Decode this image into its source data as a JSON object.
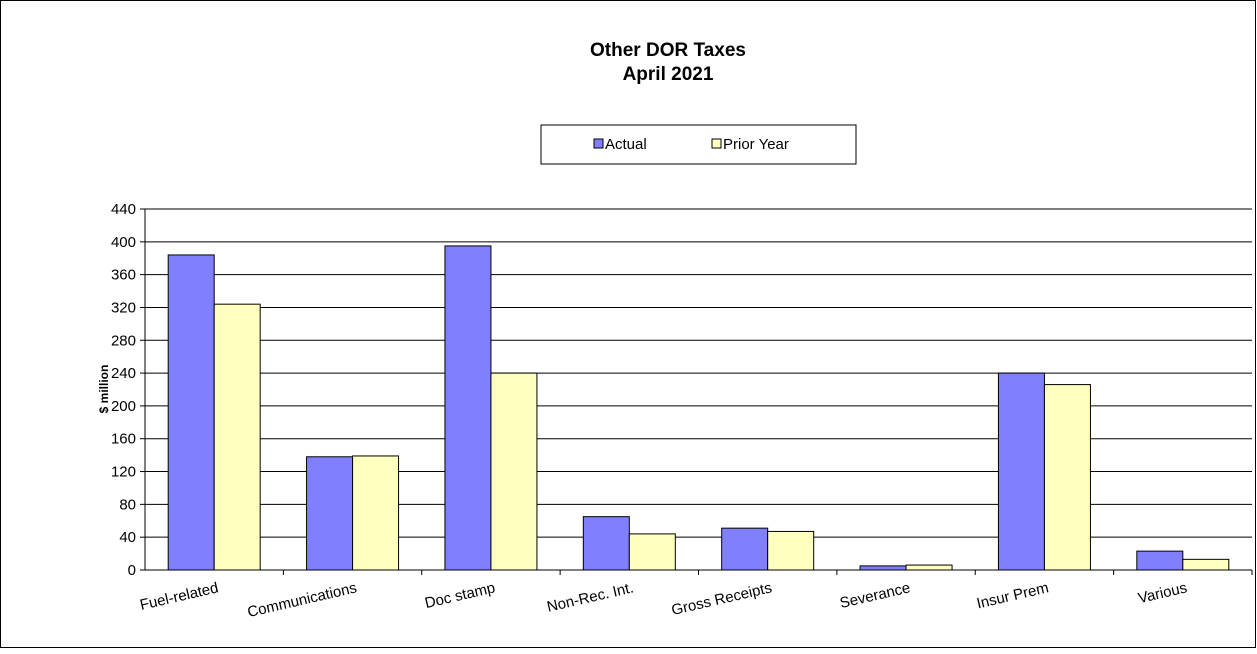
{
  "chart_data": {
    "type": "bar",
    "title": "Other DOR Taxes",
    "subtitle": "April 2021",
    "xlabel": "",
    "ylabel": "$ million",
    "ylim": [
      0,
      440
    ],
    "yticks": [
      0,
      40,
      80,
      120,
      160,
      200,
      240,
      280,
      320,
      360,
      400,
      440
    ],
    "grid": true,
    "legend_position": "top-center",
    "categories": [
      "Fuel-related",
      "Communications",
      "Doc stamp",
      "Non-Rec. Int.",
      "Gross Receipts",
      "Severance",
      "Insur Prem",
      "Various"
    ],
    "series": [
      {
        "name": "Actual",
        "color": "#8080ff",
        "values": [
          384,
          138,
          395,
          65,
          51,
          5,
          240,
          23
        ]
      },
      {
        "name": "Prior Year",
        "color": "#ffffc0",
        "values": [
          324,
          139,
          240,
          44,
          47,
          6,
          226,
          13
        ]
      }
    ]
  }
}
